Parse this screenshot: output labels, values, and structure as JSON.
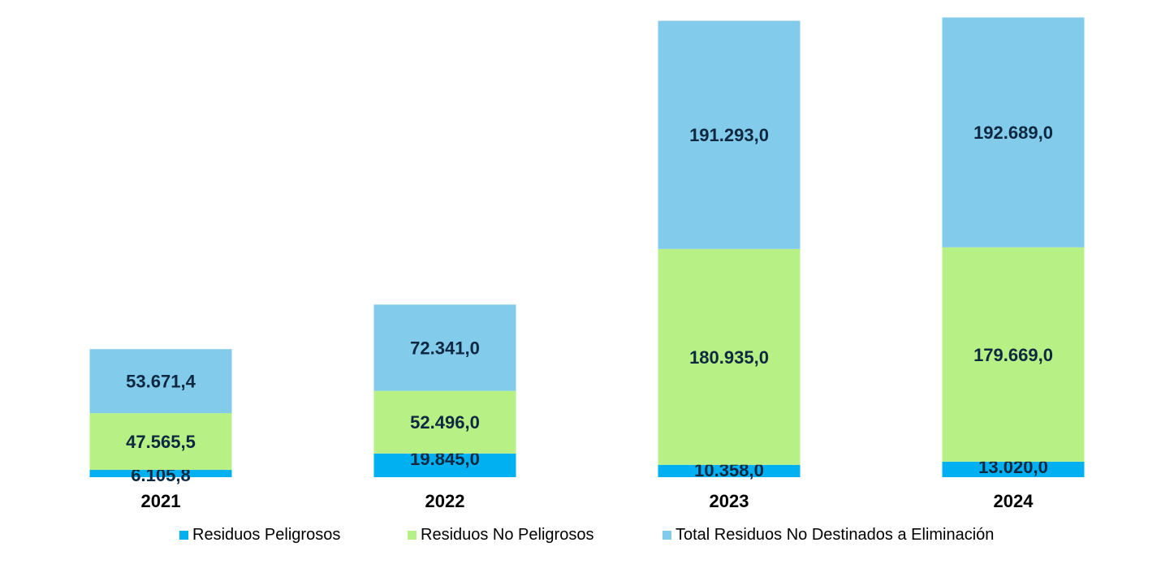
{
  "chart_data": {
    "type": "bar",
    "stacked": true,
    "categories": [
      "2021",
      "2022",
      "2023",
      "2024"
    ],
    "series": [
      {
        "name": "Residuos Peligrosos",
        "color": "#00B0F0",
        "values": [
          6105.8,
          19845.0,
          10358.0,
          13020.0
        ],
        "labels": [
          "6.105,8",
          "19.845,0",
          "10.358,0",
          "13.020,0"
        ]
      },
      {
        "name": "Residuos No Peligrosos",
        "color": "#B7F084",
        "values": [
          47565.5,
          52496.0,
          180935.0,
          179669.0
        ],
        "labels": [
          "47.565,5",
          "52.496,0",
          "180.935,0",
          "179.669,0"
        ]
      },
      {
        "name": "Total Residuos No Destinados a Eliminación",
        "color": "#83CBEB",
        "values": [
          53671.4,
          72341.0,
          191293.0,
          192689.0
        ],
        "labels": [
          "53.671,4",
          "72.341,0",
          "191.293,0",
          "192.689,0"
        ]
      }
    ],
    "ylim": [
      0,
      400000
    ],
    "axes_visible": false,
    "grid": false,
    "legend": "bottom"
  }
}
